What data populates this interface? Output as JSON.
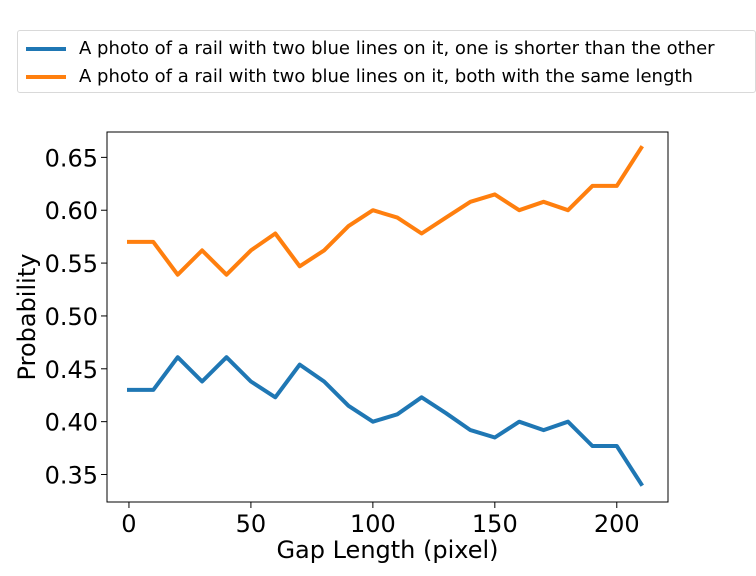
{
  "chart_data": {
    "type": "line",
    "xlabel": "Gap Length (pixel)",
    "ylabel": "Probability",
    "xlim": [
      -9,
      221
    ],
    "ylim": [
      0.324,
      0.674
    ],
    "xticks": [
      0,
      50,
      100,
      150,
      200
    ],
    "yticks": [
      0.35,
      0.4,
      0.45,
      0.5,
      0.55,
      0.6,
      0.65
    ],
    "ytick_labels": [
      "0.35",
      "0.40",
      "0.45",
      "0.50",
      "0.55",
      "0.60",
      "0.65"
    ],
    "legend_position": "above",
    "x": [
      0,
      10,
      20,
      30,
      40,
      50,
      60,
      70,
      80,
      90,
      100,
      110,
      120,
      130,
      140,
      150,
      160,
      170,
      180,
      190,
      200,
      210
    ],
    "series": [
      {
        "name": "A photo of a rail with two blue lines on it, one is shorter than the other",
        "color": "#1f77b4",
        "values": [
          0.43,
          0.43,
          0.461,
          0.438,
          0.461,
          0.438,
          0.423,
          0.454,
          0.438,
          0.415,
          0.4,
          0.407,
          0.423,
          0.408,
          0.392,
          0.385,
          0.4,
          0.392,
          0.4,
          0.377,
          0.377,
          0.341
        ]
      },
      {
        "name": "A photo of a rail with two blue lines on it, both with the same length",
        "color": "#ff7f0e",
        "values": [
          0.57,
          0.57,
          0.539,
          0.562,
          0.539,
          0.562,
          0.578,
          0.547,
          0.562,
          0.585,
          0.6,
          0.593,
          0.578,
          0.593,
          0.608,
          0.615,
          0.6,
          0.608,
          0.6,
          0.623,
          0.623,
          0.659
        ]
      }
    ]
  }
}
